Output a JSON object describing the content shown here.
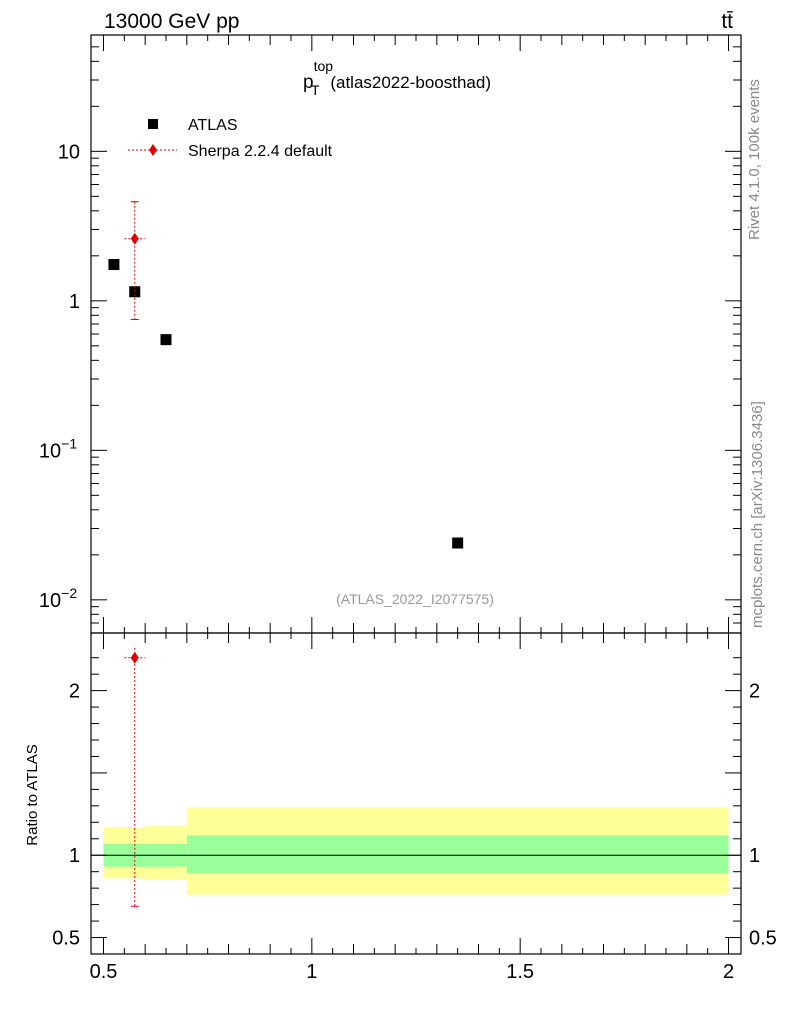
{
  "header": {
    "left_label": "13000 GeV pp",
    "right_label": "tt̄"
  },
  "side_labels": {
    "rivet": "Rivet 4.1.0,  100k events",
    "mcplots": "mcplots.cern.ch [arXiv:1306.3436]"
  },
  "chart_data": [
    {
      "type": "scatter",
      "panel": "main",
      "title_main": "p",
      "title_sub": "T",
      "title_sup": "top",
      "title_suffix": " (atlas2022-boosthad)",
      "watermark": "(ATLAS_2022_I2077575)",
      "yscale": "log",
      "ylim": [
        0.006,
        60
      ],
      "xlim": [
        0.47,
        2.03
      ],
      "yticks_major": [
        {
          "value": 10,
          "label": "10"
        },
        {
          "value": 1,
          "label": "1"
        },
        {
          "value": 0.1,
          "label": "10",
          "exp": "−1"
        },
        {
          "value": 0.01,
          "label": "10",
          "exp": "−2"
        }
      ],
      "series": [
        {
          "name": "ATLAS",
          "color": "#000000",
          "marker": "square",
          "points": [
            {
              "x": 0.525,
              "y": 1.75
            },
            {
              "x": 0.575,
              "y": 1.15
            },
            {
              "x": 0.65,
              "y": 0.55
            },
            {
              "x": 1.35,
              "y": 0.024
            }
          ]
        },
        {
          "name": "Sherpa 2.2.4 default",
          "color": "#e00000",
          "marker": "diamond",
          "points": [
            {
              "x": 0.575,
              "y": 2.6,
              "xlo": 0.55,
              "xhi": 0.6,
              "ylo": 0.75,
              "yhi": 4.6
            }
          ]
        }
      ]
    },
    {
      "type": "area",
      "panel": "ratio",
      "ylabel": "Ratio to ATLAS",
      "ylim": [
        0.4,
        2.35
      ],
      "xlim": [
        0.47,
        2.03
      ],
      "yticks_labeled": [
        {
          "value": 2,
          "label": "2"
        },
        {
          "value": 1,
          "label": "1"
        },
        {
          "value": 0.5,
          "label": "0.5"
        }
      ],
      "xticks_labeled": [
        {
          "value": 0.5,
          "label": "0.5"
        },
        {
          "value": 1,
          "label": "1"
        },
        {
          "value": 1.5,
          "label": "1.5"
        },
        {
          "value": 2,
          "label": "2"
        }
      ],
      "bands": [
        {
          "xlo": 0.5,
          "xhi": 0.6,
          "stat_lo": 0.93,
          "stat_hi": 1.07,
          "tot_lo": 0.86,
          "tot_hi": 1.17
        },
        {
          "xlo": 0.6,
          "xhi": 0.7,
          "stat_lo": 0.93,
          "stat_hi": 1.07,
          "tot_lo": 0.85,
          "tot_hi": 1.18
        },
        {
          "xlo": 0.7,
          "xhi": 2.0,
          "stat_lo": 0.89,
          "stat_hi": 1.12,
          "tot_lo": 0.76,
          "tot_hi": 1.29
        }
      ],
      "band_colors": {
        "stat": "#99ff99",
        "total": "#ffff99"
      },
      "reference_line": 1,
      "series": [
        {
          "name": "Sherpa 2.2.4 default",
          "color": "#e00000",
          "points": [
            {
              "x": 0.575,
              "y": 2.2,
              "xlo": 0.55,
              "xhi": 0.6,
              "ylo": 0.69,
              "yhi": 2.26
            }
          ]
        }
      ]
    }
  ]
}
